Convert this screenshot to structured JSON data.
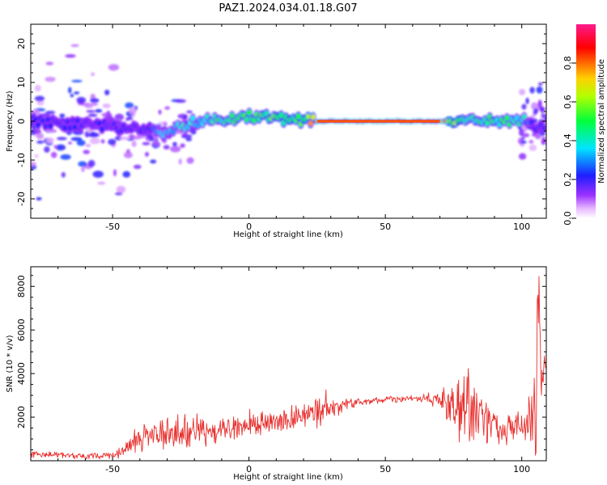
{
  "title": "PAZ1.2024.034.01.18.G07",
  "colors": {
    "snr_line": "#e8312f",
    "axis": "#000000"
  },
  "chart_data": [
    {
      "type": "heatmap",
      "xlabel": "Height of straight line (km)",
      "ylabel": "Frequency (Hz)",
      "xlim": [
        -80,
        109
      ],
      "ylim": [
        -25,
        25
      ],
      "xticks": [
        "-50",
        "0",
        "50",
        "100"
      ],
      "xtick_values": [
        -50,
        0,
        50,
        100
      ],
      "yticks": [
        "-20",
        "-10",
        "0",
        "10",
        "20"
      ],
      "ytick_values": [
        -20,
        -10,
        0,
        10,
        20
      ],
      "colorbar": {
        "label": "Normalized spectral amplitude",
        "ticks": [
          "0.0",
          "0.2",
          "0.4",
          "0.6",
          "0.8"
        ],
        "tick_values": [
          0.0,
          0.2,
          0.4,
          0.6,
          0.8
        ],
        "range": [
          0,
          1
        ],
        "colormap": "gist_rainbow_r"
      },
      "ridge": {
        "x": [
          -80,
          -60,
          -40,
          -30,
          -20,
          -10,
          -5,
          0,
          10,
          20,
          25,
          30,
          40,
          50,
          60,
          70,
          80,
          90,
          100,
          102,
          105,
          109
        ],
        "freq": [
          0,
          -1,
          -2,
          -3,
          0,
          0.5,
          1,
          1.5,
          0.5,
          0.3,
          0,
          0,
          0,
          0,
          0,
          0,
          0.2,
          0.3,
          0.3,
          0,
          -1,
          -2
        ],
        "amplitude": [
          0.25,
          0.2,
          0.2,
          0.35,
          0.4,
          0.45,
          0.5,
          0.5,
          0.55,
          0.55,
          0.85,
          0.95,
          0.95,
          0.95,
          0.95,
          0.9,
          0.45,
          0.5,
          0.45,
          0.3,
          0.2,
          0.2
        ]
      }
    },
    {
      "type": "line",
      "xlabel": "Height of straight line (km)",
      "ylabel": "SNR (10 * v/v)",
      "xlim": [
        -80,
        109
      ],
      "ylim": [
        0,
        8900
      ],
      "xticks": [
        "-50",
        "0",
        "50",
        "100"
      ],
      "xtick_values": [
        -50,
        0,
        50,
        100
      ],
      "yticks": [
        "2000",
        "4000",
        "6000",
        "8000"
      ],
      "ytick_values": [
        2000,
        4000,
        6000,
        8000
      ],
      "envelope": {
        "x": [
          -80,
          -60,
          -50,
          -45,
          -40,
          -30,
          -20,
          -10,
          0,
          10,
          20,
          25,
          30,
          40,
          50,
          60,
          70,
          75,
          80,
          85,
          90,
          95,
          100,
          104,
          106,
          107,
          109
        ],
        "mean": [
          300,
          200,
          250,
          500,
          1000,
          1300,
          1300,
          1400,
          1600,
          1800,
          2000,
          2200,
          2400,
          2700,
          2800,
          2850,
          2800,
          2600,
          2300,
          2000,
          1600,
          1500,
          1600,
          2000,
          3000,
          4000,
          4100
        ],
        "noise": [
          200,
          150,
          200,
          500,
          800,
          900,
          800,
          700,
          600,
          600,
          700,
          900,
          500,
          200,
          150,
          200,
          400,
          1800,
          2200,
          1600,
          1000,
          800,
          900,
          1500,
          4000,
          1500,
          600
        ]
      }
    }
  ]
}
